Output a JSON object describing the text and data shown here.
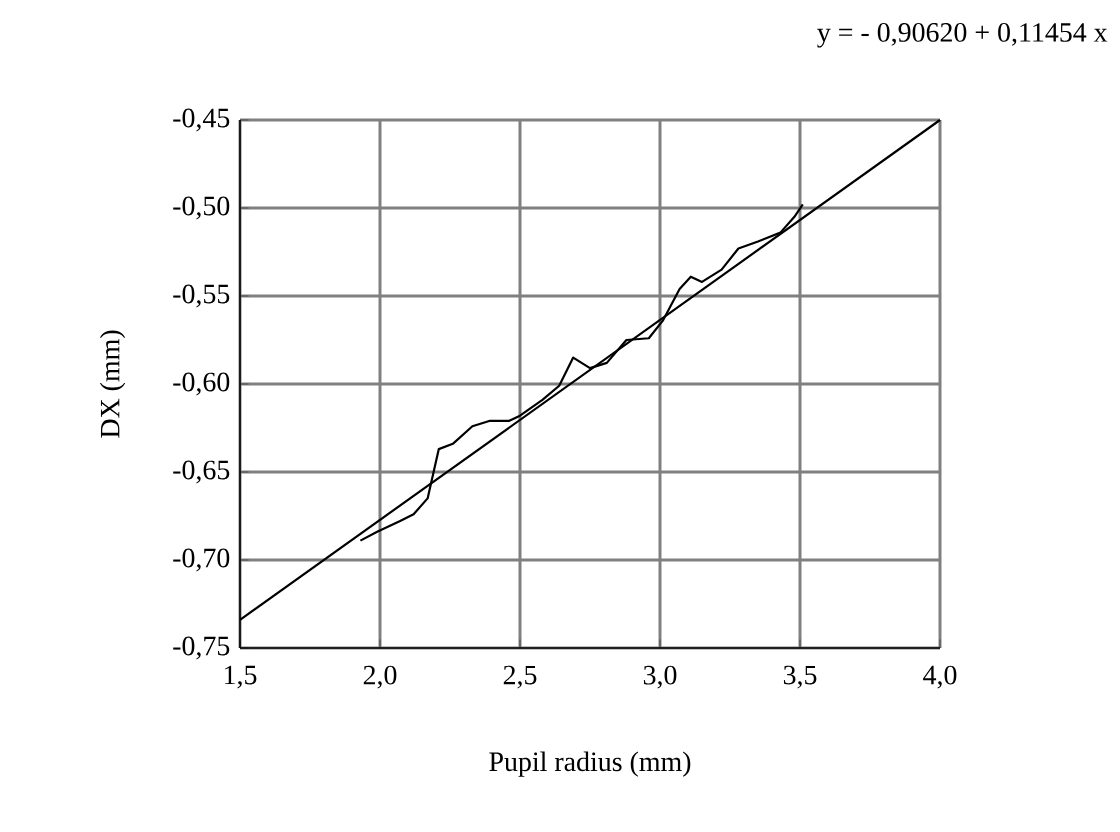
{
  "chart_data": {
    "type": "line",
    "annotations": [
      "y =  - 0,90620 + 0,11454 x"
    ],
    "xlabel": "Pupil radius (mm)",
    "ylabel": "DX (mm)",
    "xlim": [
      1.5,
      4.0
    ],
    "ylim": [
      -0.75,
      -0.45
    ],
    "xticks": [
      {
        "value": 1.5,
        "label": "1,5"
      },
      {
        "value": 2.0,
        "label": "2,0"
      },
      {
        "value": 2.5,
        "label": "2,5"
      },
      {
        "value": 3.0,
        "label": "3,0"
      },
      {
        "value": 3.5,
        "label": "3,5"
      },
      {
        "value": 4.0,
        "label": "4,0"
      }
    ],
    "yticks": [
      {
        "value": -0.75,
        "label": "-0,75"
      },
      {
        "value": -0.7,
        "label": "-0,70"
      },
      {
        "value": -0.65,
        "label": "-0,65"
      },
      {
        "value": -0.6,
        "label": "-0,60"
      },
      {
        "value": -0.55,
        "label": "-0,55"
      },
      {
        "value": -0.5,
        "label": "-0,50"
      },
      {
        "value": -0.45,
        "label": "-0,45"
      }
    ],
    "grid": true,
    "line_style": "solid",
    "series": [
      {
        "color": "#000000",
        "x": [
          1.93,
          1.99,
          2.07,
          2.12,
          2.17,
          2.21,
          2.26,
          2.33,
          2.39,
          2.46,
          2.5,
          2.58,
          2.64,
          2.69,
          2.75,
          2.81,
          2.88,
          2.96,
          3.01,
          3.07,
          3.11,
          3.15,
          3.22,
          3.28,
          3.35,
          3.43,
          3.48,
          3.51
        ],
        "values": [
          -0.689,
          -0.684,
          -0.678,
          -0.674,
          -0.665,
          -0.637,
          -0.634,
          -0.624,
          -0.621,
          -0.621,
          -0.618,
          -0.609,
          -0.601,
          -0.585,
          -0.591,
          -0.588,
          -0.575,
          -0.574,
          -0.564,
          -0.546,
          -0.539,
          -0.542,
          -0.535,
          -0.523,
          -0.519,
          -0.514,
          -0.505,
          -0.498
        ]
      },
      {
        "color": "#000000",
        "x": [
          1.5,
          4.0
        ],
        "values": [
          -0.734,
          -0.45
        ]
      }
    ]
  }
}
